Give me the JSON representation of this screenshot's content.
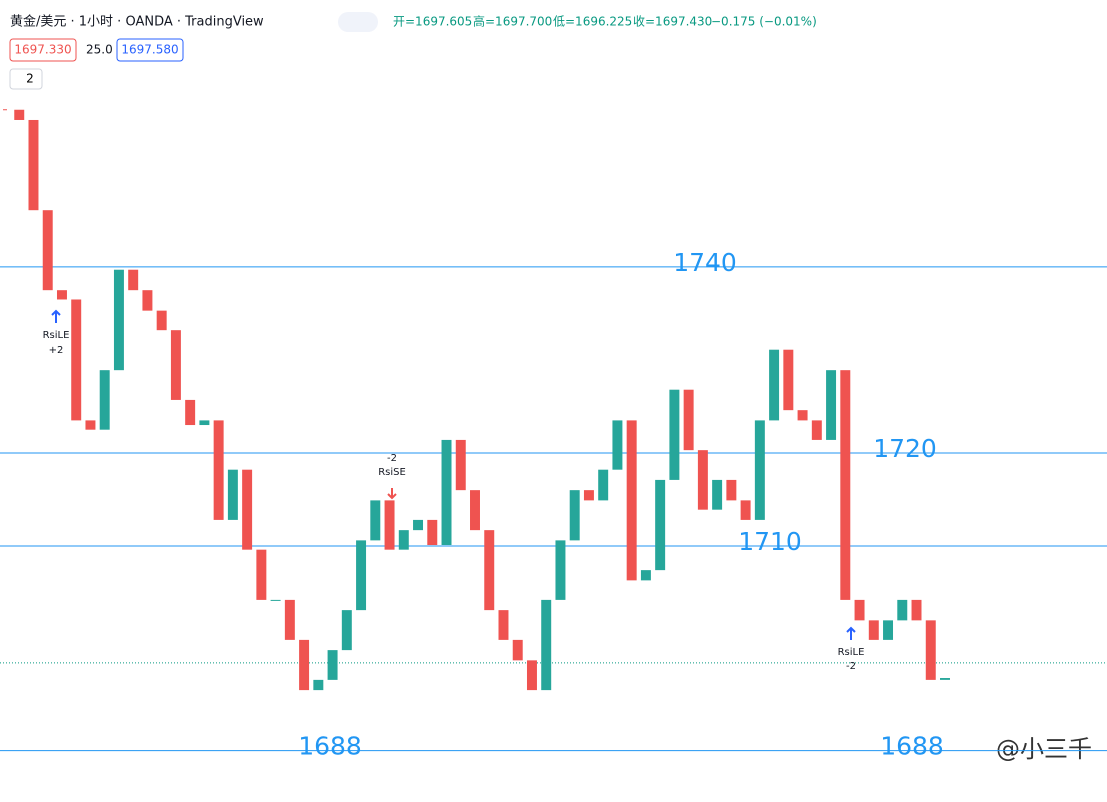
{
  "header": {
    "symbol": "黄金/美元 · 1小时 · OANDA · TradingView",
    "open": "开=1697.605",
    "high": "高=1697.700",
    "low": "低=1696.225",
    "close": "收=1697.430",
    "change": "−0.175 (−0.01%)",
    "bid": "1697.330",
    "spread": "25.0",
    "ask": "1697.580",
    "indicators": "2"
  },
  "chart_data": {
    "type": "candlestick",
    "closes": [
      1756.9,
      1755.8,
      1746.1,
      1737.5,
      1736.5,
      1723.5,
      1722.5,
      1728.9,
      1739.7,
      1737.5,
      1735.3,
      1733.2,
      1725.7,
      1723.0,
      1723.5,
      1712.8,
      1718.2,
      1709.6,
      1704.2,
      1704.2,
      1699.9,
      1694.5,
      1695.6,
      1698.8,
      1703.1,
      1710.6,
      1714.9,
      1709.6,
      1711.7,
      1712.8,
      1710.1,
      1721.4,
      1716.0,
      1711.7,
      1703.1,
      1699.9,
      1697.7,
      1694.5,
      1704.2,
      1710.6,
      1716.0,
      1714.9,
      1718.2,
      1723.5,
      1706.3,
      1707.4,
      1717.1,
      1726.8,
      1720.3,
      1713.9,
      1717.1,
      1714.9,
      1712.8,
      1723.5,
      1731.1,
      1724.6,
      1723.5,
      1721.4,
      1728.9,
      1704.2,
      1702.0,
      1699.9,
      1702.0,
      1704.2,
      1702.0,
      1695.6,
      1695.8
    ],
    "ylim": [
      1682.9,
      1768.7
    ],
    "levels": [
      1740,
      1720,
      1710,
      1688
    ],
    "current_price": 1697.43,
    "up_color": "#26a69a",
    "down_color": "#ef5350",
    "annotations": {
      "long1": "RsiLE",
      "long1_qty": "+2",
      "short": "RsiSE",
      "short_qty": "-2",
      "long2": "RsiLE",
      "long2_qty": "-2"
    }
  },
  "watermark": "@小三千"
}
